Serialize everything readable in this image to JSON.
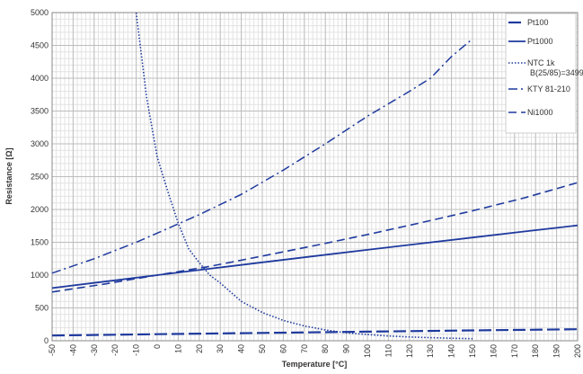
{
  "chart_data": {
    "type": "line",
    "title": "",
    "xlabel": "Temperature [°C]",
    "ylabel": "Resistance [Ω]",
    "xlim": [
      -50,
      200
    ],
    "ylim": [
      0,
      5000
    ],
    "x_ticks": [
      -50,
      -40,
      -30,
      -20,
      -10,
      0,
      10,
      20,
      30,
      40,
      50,
      60,
      70,
      80,
      90,
      100,
      110,
      120,
      130,
      140,
      150,
      160,
      170,
      180,
      190,
      200
    ],
    "y_ticks": [
      0,
      500,
      1000,
      1500,
      2000,
      2500,
      3000,
      3500,
      4000,
      4500,
      5000
    ],
    "grid": true,
    "legend_position": "top-right",
    "series": [
      {
        "name": "Pt100",
        "color": "#1f3a9e",
        "dash": "longdash-thick",
        "x": [
          -50,
          0,
          50,
          100,
          150,
          200
        ],
        "y": [
          80,
          100,
          119,
          139,
          157,
          176
        ]
      },
      {
        "name": "Pt1000",
        "color": "#1f3a9e",
        "dash": "solid",
        "x": [
          -50,
          -25,
          0,
          25,
          50,
          75,
          100,
          125,
          150,
          175,
          200
        ],
        "y": [
          803,
          902,
          1000,
          1097,
          1194,
          1290,
          1385,
          1479,
          1573,
          1666,
          1758
        ]
      },
      {
        "name": "NTC 1k\nB(25/85)=3499",
        "color": "#1f3a9e",
        "dash": "dotted",
        "x": [
          -10,
          -5,
          0,
          5,
          10,
          15,
          20,
          25,
          30,
          40,
          50,
          60,
          70,
          80,
          90,
          100,
          110,
          120,
          130,
          140,
          150
        ],
        "y": [
          5000,
          3700,
          2800,
          2280,
          1790,
          1400,
          1190,
          1000,
          880,
          600,
          430,
          310,
          225,
          165,
          120,
          95,
          72,
          58,
          47,
          39,
          32
        ]
      },
      {
        "name": "KTY 81-210",
        "color": "#1f3a9e",
        "dash": "dashdot",
        "x": [
          -50,
          -30,
          -10,
          0,
          20,
          40,
          60,
          80,
          100,
          120,
          130,
          140,
          150
        ],
        "y": [
          1030,
          1250,
          1500,
          1640,
          1920,
          2230,
          2600,
          3000,
          3420,
          3800,
          4000,
          4330,
          4600
        ]
      },
      {
        "name": "Ni1000",
        "color": "#1f3a9e",
        "dash": "dashed",
        "x": [
          -50,
          -25,
          0,
          25,
          50,
          75,
          100,
          125,
          150,
          175,
          200
        ],
        "y": [
          743,
          865,
          1000,
          1133,
          1290,
          1450,
          1618,
          1795,
          1980,
          2180,
          2410
        ]
      }
    ]
  }
}
